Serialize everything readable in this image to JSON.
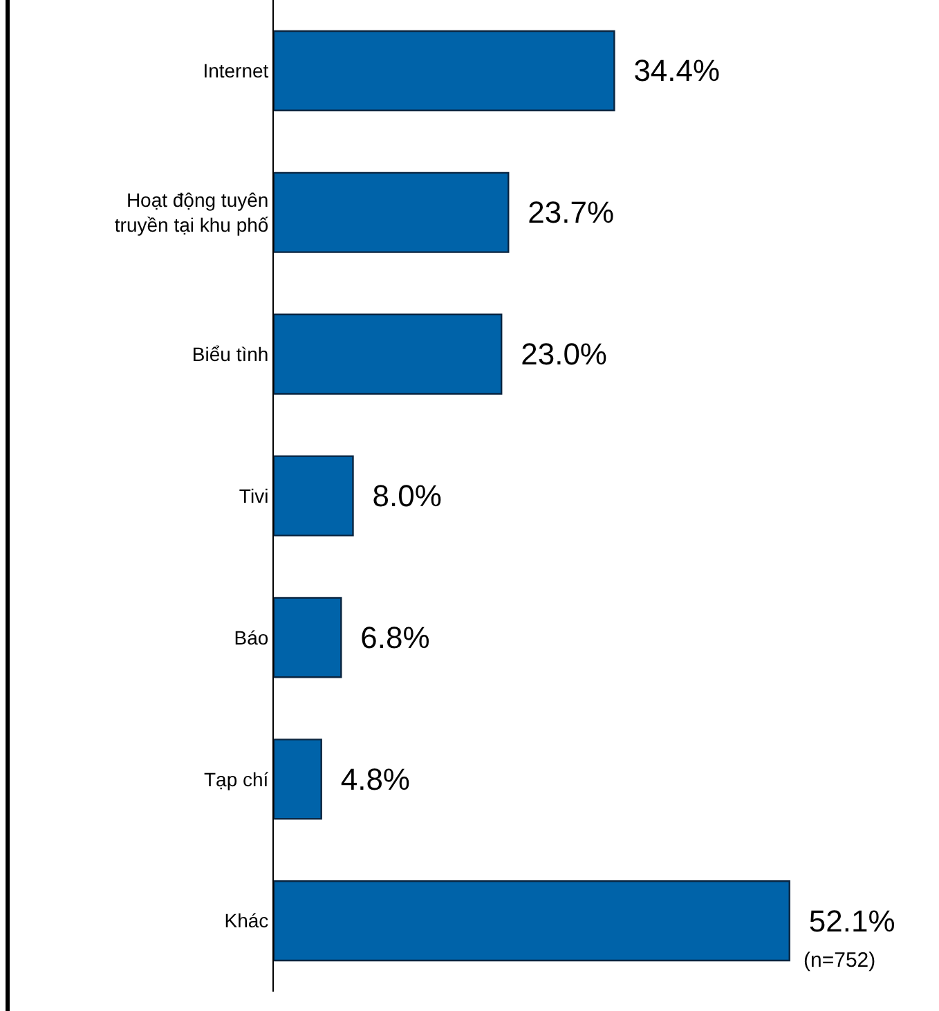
{
  "chart_data": {
    "type": "bar",
    "orientation": "horizontal",
    "categories": [
      "Internet",
      "Hoạt động tuyên\ntruyền tại khu phố",
      "Biểu tình",
      "Tivi",
      "Báo",
      "Tạp chí",
      "Khác"
    ],
    "values": [
      34.4,
      23.7,
      23.0,
      8.0,
      6.8,
      4.8,
      52.1
    ],
    "value_labels": [
      "34.4%",
      "23.7%",
      "23.0%",
      "8.0%",
      "6.8%",
      "4.8%",
      "52.1%"
    ],
    "color": "#0063a9",
    "annotations": [
      "(n=752)"
    ]
  }
}
